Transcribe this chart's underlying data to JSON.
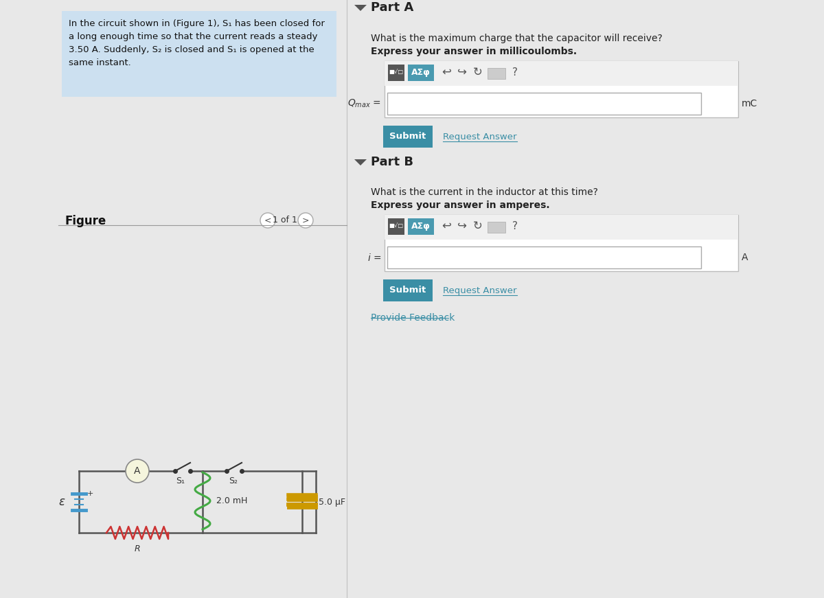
{
  "bg_color": "#e8e8e8",
  "problem_text_bg": "#cce0f0",
  "problem_text_lines": [
    "In the circuit shown in (Figure 1), S₁ has been closed for",
    "a long enough time so that the current reads a steady",
    "3.50 A. Suddenly, S₂ is closed and S₁ is opened at the",
    "same instant."
  ],
  "figure_label": "Figure",
  "figure_nav": "1 of 1",
  "part_a_label": "Part A",
  "part_a_q": "What is the maximum charge that the capacitor will receive?",
  "part_a_unit_line": "Express your answer in millicoulombs.",
  "part_a_unit": "mC",
  "part_b_label": "Part B",
  "part_b_q": "What is the current in the inductor at this time?",
  "part_b_unit_line": "Express your answer in amperes.",
  "part_b_unit": "A",
  "submit_bg": "#3a8ea5",
  "submit_text_color": "#ffffff",
  "request_answer_color": "#3a8ea5",
  "provide_feedback_color": "#3a8ea5",
  "divider_color": "#999999",
  "triangle_color": "#555555",
  "circuit_wire_color": "#555555",
  "inductor_color": "#44aa44",
  "resistor_color": "#cc3333",
  "capacitor_color": "#cc9900",
  "battery_color": "#4499cc",
  "ammeter_bg": "#f5f5dd",
  "ammeter_border": "#888888"
}
